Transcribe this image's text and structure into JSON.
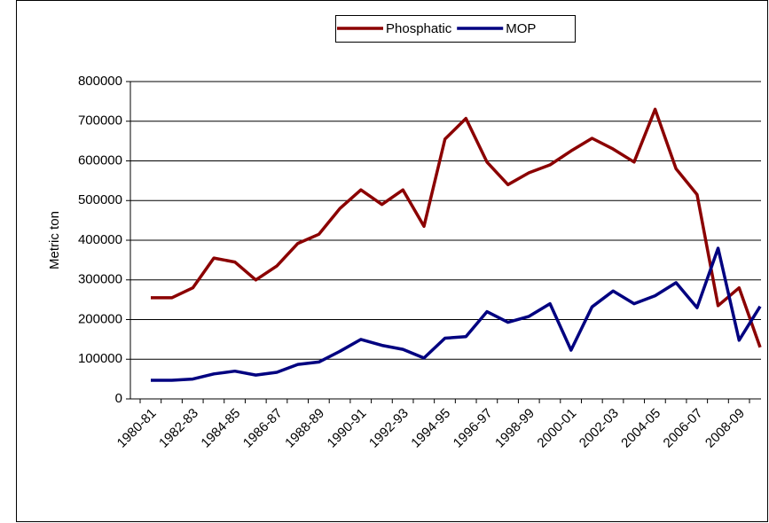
{
  "chart_data": {
    "type": "line",
    "y_label": "Metric ton",
    "categories": [
      "1980-81",
      null,
      "1982-83",
      null,
      "1984-85",
      null,
      "1986-87",
      null,
      "1988-89",
      null,
      "1990-91",
      null,
      "1992-93",
      null,
      "1994-95",
      null,
      "1996-97",
      null,
      "1998-99",
      null,
      "2000-01",
      null,
      "2002-03",
      null,
      "2004-05",
      null,
      "2006-07",
      null,
      "2008-09",
      null
    ],
    "series": [
      {
        "name": "Phosphatic",
        "color": "#8b0000",
        "values": [
          255000,
          255000,
          280000,
          355000,
          345000,
          300000,
          335000,
          392000,
          415000,
          480000,
          527000,
          490000,
          527000,
          435000,
          655000,
          707000,
          597000,
          540000,
          570000,
          590000,
          625000,
          657000,
          630000,
          597000,
          730000,
          580000,
          515000,
          235000,
          280000,
          130000
        ]
      },
      {
        "name": "MOP",
        "color": "#000080",
        "values": [
          47000,
          47000,
          50000,
          63000,
          70000,
          60000,
          67000,
          87000,
          93000,
          120000,
          150000,
          135000,
          125000,
          103000,
          153000,
          157000,
          220000,
          193000,
          208000,
          240000,
          123000,
          232000,
          272000,
          240000,
          260000,
          293000,
          230000,
          380000,
          148000,
          233000
        ]
      }
    ],
    "ylim": [
      0,
      800000
    ],
    "yticks": [
      0,
      100000,
      200000,
      300000,
      400000,
      500000,
      600000,
      700000,
      800000
    ],
    "grid": true,
    "legend": "top"
  }
}
